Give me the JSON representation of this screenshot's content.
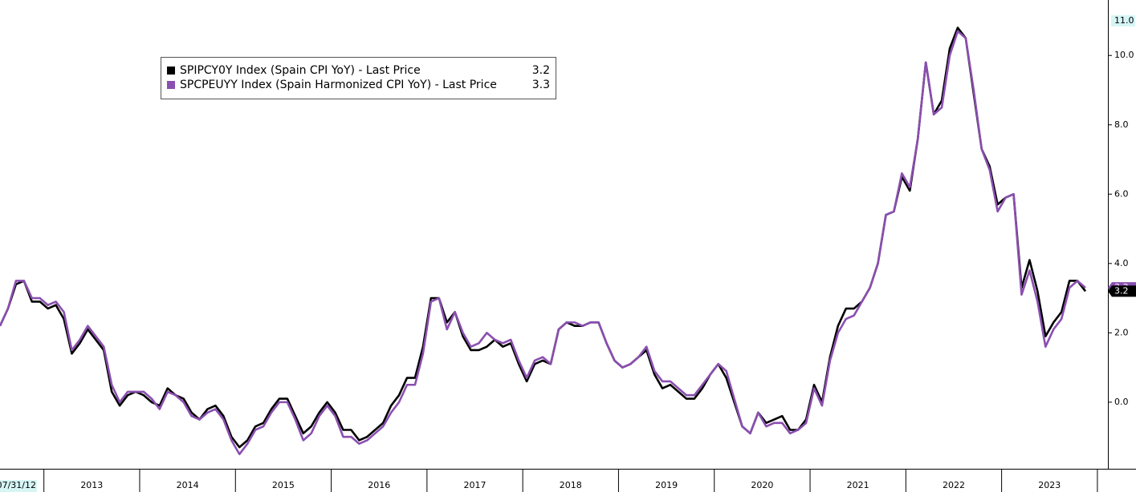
{
  "chart_data": {
    "type": "line",
    "start_label": "07/31/12",
    "x": [
      "2012-07",
      "2012-08",
      "2012-09",
      "2012-10",
      "2012-11",
      "2012-12",
      "2013-01",
      "2013-02",
      "2013-03",
      "2013-04",
      "2013-05",
      "2013-06",
      "2013-07",
      "2013-08",
      "2013-09",
      "2013-10",
      "2013-11",
      "2013-12",
      "2014-01",
      "2014-02",
      "2014-03",
      "2014-04",
      "2014-05",
      "2014-06",
      "2014-07",
      "2014-08",
      "2014-09",
      "2014-10",
      "2014-11",
      "2014-12",
      "2015-01",
      "2015-02",
      "2015-03",
      "2015-04",
      "2015-05",
      "2015-06",
      "2015-07",
      "2015-08",
      "2015-09",
      "2015-10",
      "2015-11",
      "2015-12",
      "2016-01",
      "2016-02",
      "2016-03",
      "2016-04",
      "2016-05",
      "2016-06",
      "2016-07",
      "2016-08",
      "2016-09",
      "2016-10",
      "2016-11",
      "2016-12",
      "2017-01",
      "2017-02",
      "2017-03",
      "2017-04",
      "2017-05",
      "2017-06",
      "2017-07",
      "2017-08",
      "2017-09",
      "2017-10",
      "2017-11",
      "2017-12",
      "2018-01",
      "2018-02",
      "2018-03",
      "2018-04",
      "2018-05",
      "2018-06",
      "2018-07",
      "2018-08",
      "2018-09",
      "2018-10",
      "2018-11",
      "2018-12",
      "2019-01",
      "2019-02",
      "2019-03",
      "2019-04",
      "2019-05",
      "2019-06",
      "2019-07",
      "2019-08",
      "2019-09",
      "2019-10",
      "2019-11",
      "2019-12",
      "2020-01",
      "2020-02",
      "2020-03",
      "2020-04",
      "2020-05",
      "2020-06",
      "2020-07",
      "2020-08",
      "2020-09",
      "2020-10",
      "2020-11",
      "2020-12",
      "2021-01",
      "2021-02",
      "2021-03",
      "2021-04",
      "2021-05",
      "2021-06",
      "2021-07",
      "2021-08",
      "2021-09",
      "2021-10",
      "2021-11",
      "2021-12",
      "2022-01",
      "2022-02",
      "2022-03",
      "2022-04",
      "2022-05",
      "2022-06",
      "2022-07",
      "2022-08",
      "2022-09",
      "2022-10",
      "2022-11",
      "2022-12",
      "2023-01",
      "2023-02",
      "2023-03",
      "2023-04",
      "2023-05",
      "2023-06",
      "2023-07",
      "2023-08",
      "2023-09",
      "2023-10",
      "2023-11"
    ],
    "xticks": [
      {
        "value": "2013-01",
        "label": "2013"
      },
      {
        "value": "2014-01",
        "label": "2014"
      },
      {
        "value": "2015-01",
        "label": "2015"
      },
      {
        "value": "2016-01",
        "label": "2016"
      },
      {
        "value": "2017-01",
        "label": "2017"
      },
      {
        "value": "2018-01",
        "label": "2018"
      },
      {
        "value": "2019-01",
        "label": "2019"
      },
      {
        "value": "2020-01",
        "label": "2020"
      },
      {
        "value": "2021-01",
        "label": "2021"
      },
      {
        "value": "2022-01",
        "label": "2022"
      },
      {
        "value": "2023-01",
        "label": "2023"
      }
    ],
    "series": [
      {
        "name": "SPIPCY0Y Index (Spain CPI YoY) - Last Price",
        "color": "#000000",
        "last_price": 3.2,
        "values": [
          2.2,
          2.7,
          3.4,
          3.5,
          2.9,
          2.9,
          2.7,
          2.8,
          2.4,
          1.4,
          1.7,
          2.1,
          1.8,
          1.5,
          0.3,
          -0.1,
          0.2,
          0.3,
          0.2,
          0.0,
          -0.1,
          0.4,
          0.2,
          0.1,
          -0.3,
          -0.5,
          -0.2,
          -0.1,
          -0.4,
          -1.0,
          -1.3,
          -1.1,
          -0.7,
          -0.6,
          -0.2,
          0.1,
          0.1,
          -0.4,
          -0.9,
          -0.7,
          -0.3,
          0.0,
          -0.3,
          -0.8,
          -0.8,
          -1.1,
          -1.0,
          -0.8,
          -0.6,
          -0.1,
          0.2,
          0.7,
          0.7,
          1.6,
          3.0,
          3.0,
          2.3,
          2.6,
          1.9,
          1.5,
          1.5,
          1.6,
          1.8,
          1.6,
          1.7,
          1.1,
          0.6,
          1.1,
          1.2,
          1.1,
          2.1,
          2.3,
          2.2,
          2.2,
          2.3,
          2.3,
          1.7,
          1.2,
          1.0,
          1.1,
          1.3,
          1.5,
          0.8,
          0.4,
          0.5,
          0.3,
          0.1,
          0.1,
          0.4,
          0.8,
          1.1,
          0.7,
          0.0,
          -0.7,
          -0.9,
          -0.3,
          -0.6,
          -0.5,
          -0.4,
          -0.8,
          -0.8,
          -0.5,
          0.5,
          0.0,
          1.3,
          2.2,
          2.7,
          2.7,
          2.9,
          3.3,
          4.0,
          5.4,
          5.5,
          6.5,
          6.1,
          7.6,
          9.8,
          8.3,
          8.7,
          10.2,
          10.8,
          10.5,
          8.9,
          7.3,
          6.8,
          5.7,
          5.9,
          6.0,
          3.3,
          4.1,
          3.2,
          1.9,
          2.3,
          2.6,
          3.5,
          3.5,
          3.2
        ]
      },
      {
        "name": "SPCPEUYY Index (Spain Harmonized CPI YoY) - Last Price",
        "color": "#8a4fb0",
        "last_price": 3.3,
        "values": [
          2.2,
          2.7,
          3.5,
          3.5,
          3.0,
          3.0,
          2.8,
          2.9,
          2.6,
          1.5,
          1.8,
          2.2,
          1.9,
          1.6,
          0.5,
          0.0,
          0.3,
          0.3,
          0.3,
          0.1,
          -0.2,
          0.3,
          0.2,
          0.0,
          -0.4,
          -0.5,
          -0.3,
          -0.2,
          -0.5,
          -1.1,
          -1.5,
          -1.2,
          -0.8,
          -0.7,
          -0.3,
          0.0,
          0.0,
          -0.5,
          -1.1,
          -0.9,
          -0.4,
          -0.1,
          -0.4,
          -1.0,
          -1.0,
          -1.2,
          -1.1,
          -0.9,
          -0.7,
          -0.3,
          0.0,
          0.5,
          0.5,
          1.4,
          2.9,
          3.0,
          2.1,
          2.6,
          2.0,
          1.6,
          1.7,
          2.0,
          1.8,
          1.7,
          1.8,
          1.2,
          0.7,
          1.2,
          1.3,
          1.1,
          2.1,
          2.3,
          2.3,
          2.2,
          2.3,
          2.3,
          1.7,
          1.2,
          1.0,
          1.1,
          1.3,
          1.6,
          0.9,
          0.6,
          0.6,
          0.4,
          0.2,
          0.2,
          0.5,
          0.8,
          1.1,
          0.9,
          0.1,
          -0.7,
          -0.9,
          -0.3,
          -0.7,
          -0.6,
          -0.6,
          -0.9,
          -0.8,
          -0.6,
          0.4,
          -0.1,
          1.2,
          2.0,
          2.4,
          2.5,
          2.9,
          3.3,
          4.0,
          5.4,
          5.5,
          6.6,
          6.2,
          7.6,
          9.8,
          8.3,
          8.5,
          10.0,
          10.7,
          10.5,
          9.0,
          7.3,
          6.7,
          5.5,
          5.9,
          6.0,
          3.1,
          3.8,
          2.9,
          1.6,
          2.1,
          2.4,
          3.3,
          3.5,
          3.3
        ]
      }
    ],
    "ylim": [
      -1.875,
      11.6
    ],
    "yticks": [
      {
        "value": 0,
        "label": "0.0"
      },
      {
        "value": 2,
        "label": "2.0"
      },
      {
        "value": 4,
        "label": "4.0"
      },
      {
        "value": 6,
        "label": "6.0"
      },
      {
        "value": 8,
        "label": "8.0"
      },
      {
        "value": 10,
        "label": "10.0"
      }
    ],
    "ymax_marker": {
      "value": 11,
      "label": "11.0"
    },
    "grid": false
  }
}
